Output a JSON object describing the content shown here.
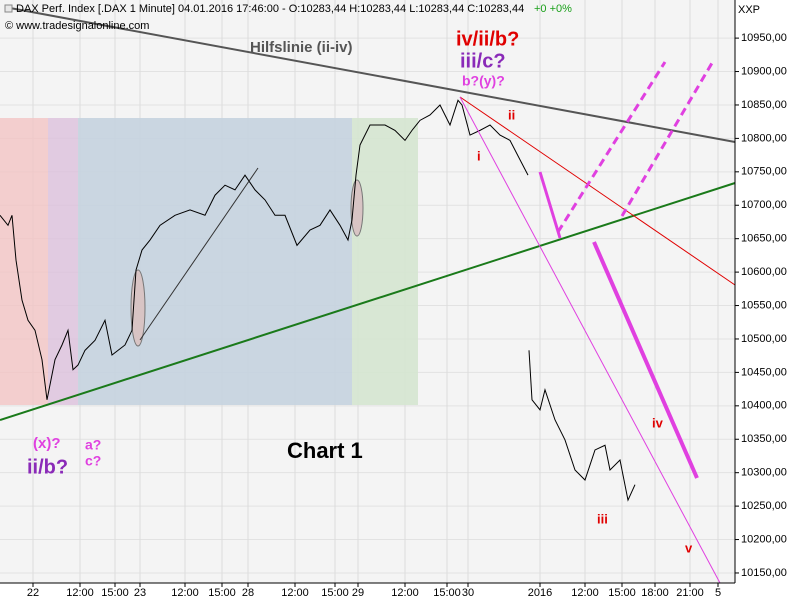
{
  "header": {
    "title": "DAX Perf. Index [.DAX  1 Minute] 04.01.2016 17:46:00 - O:10283,44 H:10283,44 L:10283,44 C:10283,44",
    "change": "+0 +0%",
    "copyright": "© www.tradesignalonline.com",
    "symbol": "XXP"
  },
  "annotations": [
    "Hilfslinie (ii-iv)",
    "iv/ii/b?",
    "iii/c?",
    "b?(y)?",
    "ii",
    "i",
    "iii",
    "iv",
    "v",
    "(x)?",
    "a?",
    "c?",
    "ii/b?",
    "Chart 1"
  ],
  "chart_data": {
    "type": "line",
    "x": [
      0,
      0.8,
      1.2,
      1.6,
      2.2,
      2.8,
      3.5,
      4.2,
      4.7,
      5.5,
      6.2,
      6.8,
      7.3,
      7.8,
      8.5,
      9.5,
      10.5,
      11.2,
      11.8,
      12.5,
      13.2,
      13.6,
      14.2,
      15.0,
      16.0,
      17.5,
      19.0,
      20.5,
      21.5,
      22.5,
      23.5,
      24.5,
      25.5,
      26.5,
      27.5,
      28.5,
      29.7,
      31.0,
      32.0,
      33.0,
      34.0,
      34.8,
      35.2,
      35.6,
      36.0,
      37.0,
      38.5,
      39.5,
      40.5,
      41.2,
      42.0,
      43.0,
      44.0,
      45.0,
      45.8,
      46.2,
      47.0,
      48.0,
      49.0,
      50.0,
      51.0,
      52.0,
      52.8,
      52.85,
      52.9,
      53.2,
      54.0,
      54.5,
      55.5,
      56.5,
      57.5,
      58.5,
      59.5,
      60.5,
      61.0,
      62.0,
      62.8,
      63.5
    ],
    "series": [
      {
        "name": "DAX Perf. Index",
        "color": "#000000",
        "values": [
          10685,
          10670,
          10685,
          10618,
          10558,
          10528,
          10513,
          10469,
          10409,
          10469,
          10491,
          10513,
          10454,
          10461,
          10483,
          10498,
          10528,
          10476,
          10483,
          10491,
          10513,
          10603,
          10633,
          10648,
          10670,
          10685,
          10693,
          10685,
          10715,
          10730,
          10723,
          10745,
          10723,
          10708,
          10685,
          10685,
          10640,
          10663,
          10670,
          10693,
          10670,
          10648,
          10678,
          10745,
          10790,
          10820,
          10820,
          10812,
          10797,
          10812,
          10827,
          10835,
          10850,
          10820,
          10857,
          10850,
          10805,
          10812,
          10820,
          10805,
          10797,
          10768,
          10745,
          null,
          10483,
          10409,
          10394,
          10424,
          10379,
          10349,
          10304,
          10289,
          10334,
          10341,
          10304,
          10319,
          10259,
          10282
        ]
      }
    ],
    "xlim": [
      0,
      73.5
    ],
    "xticks": [
      {
        "value": 3.3,
        "label": "22"
      },
      {
        "value": 8.0,
        "label": "12:00"
      },
      {
        "value": 11.5,
        "label": "15:00"
      },
      {
        "value": 14.0,
        "label": "23"
      },
      {
        "value": 18.5,
        "label": "12:00"
      },
      {
        "value": 22.2,
        "label": "15:00"
      },
      {
        "value": 24.8,
        "label": "28"
      },
      {
        "value": 29.5,
        "label": "12:00"
      },
      {
        "value": 33.5,
        "label": "15:00"
      },
      {
        "value": 35.8,
        "label": "29"
      },
      {
        "value": 40.5,
        "label": "12:00"
      },
      {
        "value": 44.7,
        "label": "15:00"
      },
      {
        "value": 46.8,
        "label": "30"
      },
      {
        "value": 54.0,
        "label": "2016"
      },
      {
        "value": 58.5,
        "label": "12:00"
      },
      {
        "value": 62.2,
        "label": "15:00"
      },
      {
        "value": 65.5,
        "label": "18:00"
      },
      {
        "value": 69.0,
        "label": "21:00"
      },
      {
        "value": 71.8,
        "label": "5"
      }
    ],
    "ylim": [
      10135,
      11007
    ],
    "yticks": [
      {
        "value": 10150,
        "label": "10150,00"
      },
      {
        "value": 10200,
        "label": "10200,00"
      },
      {
        "value": 10250,
        "label": "10250,00"
      },
      {
        "value": 10300,
        "label": "10300,00"
      },
      {
        "value": 10350,
        "label": "10350,00"
      },
      {
        "value": 10400,
        "label": "10400,00"
      },
      {
        "value": 10450,
        "label": "10450,00"
      },
      {
        "value": 10500,
        "label": "10500,00"
      },
      {
        "value": 10550,
        "label": "10550,00"
      },
      {
        "value": 10600,
        "label": "10600,00"
      },
      {
        "value": 10650,
        "label": "10650,00"
      },
      {
        "value": 10700,
        "label": "10700,00"
      },
      {
        "value": 10750,
        "label": "10750,00"
      },
      {
        "value": 10800,
        "label": "10800,00"
      },
      {
        "value": 10850,
        "label": "10850,00"
      },
      {
        "value": 10900,
        "label": "10900,00"
      },
      {
        "value": 10950,
        "label": "10950,00"
      }
    ],
    "grid": true
  }
}
